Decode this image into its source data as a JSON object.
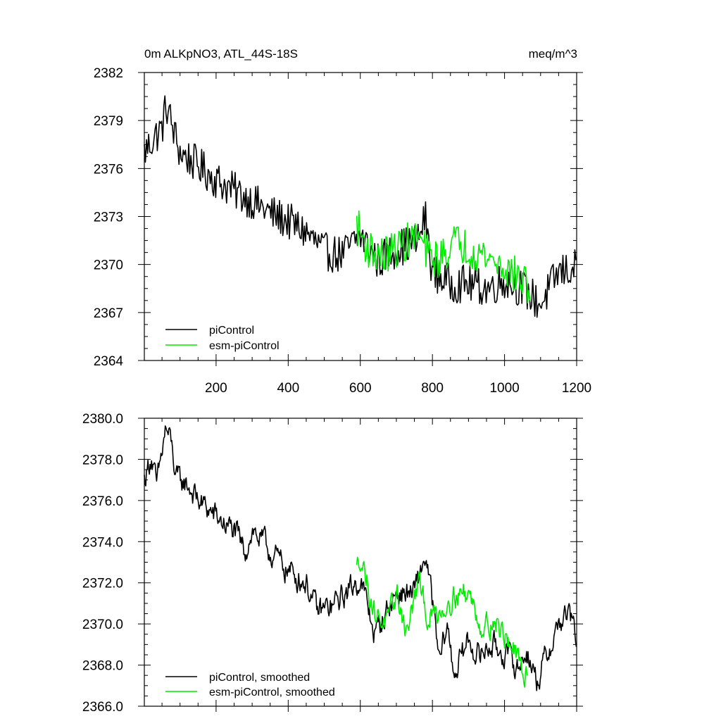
{
  "chart_data": [
    {
      "type": "line",
      "title": "0m ALKpNO3, ATL_44S-18S",
      "units": "meq/m^3",
      "xlabel": "",
      "ylabel": "",
      "xlim": [
        1,
        1200
      ],
      "ylim": [
        2364,
        2382
      ],
      "xticks": [
        200,
        400,
        600,
        800,
        1000,
        1200
      ],
      "xtick_labels": [
        "200",
        "400",
        "600",
        "800",
        "1000",
        "1200"
      ],
      "yticks": [
        2364,
        2367,
        2370,
        2373,
        2376,
        2379,
        2382
      ],
      "ytick_labels": [
        "2364",
        "2367",
        "2370",
        "2373",
        "2376",
        "2379",
        "2382"
      ],
      "legend_position": "bottom-left",
      "series": [
        {
          "name": "piControl",
          "color": "#000000",
          "knots": [
            [
              1,
              2377.0
            ],
            [
              30,
              2378.0
            ],
            [
              50,
              2378.5
            ],
            [
              62,
              2380.0
            ],
            [
              80,
              2378.5
            ],
            [
              100,
              2377.0
            ],
            [
              150,
              2376.2
            ],
            [
              200,
              2375.3
            ],
            [
              250,
              2374.6
            ],
            [
              300,
              2374.0
            ],
            [
              350,
              2373.2
            ],
            [
              400,
              2372.7
            ],
            [
              450,
              2372.0
            ],
            [
              500,
              2370.8
            ],
            [
              550,
              2370.6
            ],
            [
              600,
              2371.8
            ],
            [
              650,
              2370.2
            ],
            [
              700,
              2371.0
            ],
            [
              760,
              2371.5
            ],
            [
              780,
              2373.0
            ],
            [
              800,
              2369.5
            ],
            [
              850,
              2368.8
            ],
            [
              900,
              2368.8
            ],
            [
              950,
              2368.5
            ],
            [
              1000,
              2369.0
            ],
            [
              1050,
              2368.5
            ],
            [
              1100,
              2367.5
            ],
            [
              1150,
              2369.5
            ],
            [
              1200,
              2369.8
            ]
          ],
          "noise": 1.2
        },
        {
          "name": "esm-piControl",
          "color": "#00ee00",
          "knots": [
            [
              590,
              2372.5
            ],
            [
              620,
              2371.0
            ],
            [
              660,
              2370.5
            ],
            [
              700,
              2371.0
            ],
            [
              760,
              2371.8
            ],
            [
              790,
              2370.5
            ],
            [
              820,
              2370.3
            ],
            [
              860,
              2371.5
            ],
            [
              900,
              2371.0
            ],
            [
              950,
              2370.5
            ],
            [
              1000,
              2369.8
            ],
            [
              1050,
              2369.0
            ],
            [
              1070,
              2368.5
            ]
          ],
          "noise": 1.2
        }
      ],
      "legend": [
        "piControl",
        "esm-piControl"
      ]
    },
    {
      "type": "line",
      "title": "",
      "xlabel": "",
      "ylabel": "",
      "xlim": [
        1,
        1200
      ],
      "ylim": [
        2366.0,
        2380.0
      ],
      "xticks": [
        200,
        400,
        600,
        800,
        1000,
        1200
      ],
      "yticks": [
        2366.0,
        2368.0,
        2370.0,
        2372.0,
        2374.0,
        2376.0,
        2378.0,
        2380.0
      ],
      "ytick_labels": [
        "2366.0",
        "2368.0",
        "2370.0",
        "2372.0",
        "2374.0",
        "2376.0",
        "2378.0",
        "2380.0"
      ],
      "legend_position": "bottom-left",
      "series": [
        {
          "name": "piControl, smoothed",
          "color": "#000000",
          "knots": [
            [
              1,
              2377.0
            ],
            [
              20,
              2378.2
            ],
            [
              35,
              2376.6
            ],
            [
              60,
              2379.5
            ],
            [
              75,
              2378.8
            ],
            [
              90,
              2377.0
            ],
            [
              120,
              2376.8
            ],
            [
              150,
              2376.0
            ],
            [
              200,
              2375.2
            ],
            [
              250,
              2374.5
            ],
            [
              280,
              2373.5
            ],
            [
              300,
              2374.6
            ],
            [
              350,
              2373.5
            ],
            [
              400,
              2372.6
            ],
            [
              450,
              2372.0
            ],
            [
              480,
              2370.6
            ],
            [
              520,
              2370.8
            ],
            [
              560,
              2371.5
            ],
            [
              600,
              2372.2
            ],
            [
              640,
              2369.5
            ],
            [
              700,
              2371.5
            ],
            [
              750,
              2371.5
            ],
            [
              780,
              2373.3
            ],
            [
              800,
              2371.0
            ],
            [
              820,
              2368.0
            ],
            [
              840,
              2370.0
            ],
            [
              860,
              2367.6
            ],
            [
              900,
              2369.2
            ],
            [
              930,
              2368.4
            ],
            [
              960,
              2369.0
            ],
            [
              1000,
              2368.6
            ],
            [
              1040,
              2367.8
            ],
            [
              1060,
              2368.8
            ],
            [
              1090,
              2367.2
            ],
            [
              1120,
              2368.6
            ],
            [
              1150,
              2370.0
            ],
            [
              1180,
              2370.5
            ],
            [
              1200,
              2369.2
            ]
          ],
          "noise": 0.5
        },
        {
          "name": "esm-piControl, smoothed",
          "color": "#00ee00",
          "knots": [
            [
              590,
              2372.6
            ],
            [
              600,
              2373.4
            ],
            [
              620,
              2372.0
            ],
            [
              640,
              2370.5
            ],
            [
              680,
              2370.0
            ],
            [
              700,
              2371.5
            ],
            [
              730,
              2369.6
            ],
            [
              760,
              2372.0
            ],
            [
              790,
              2370.2
            ],
            [
              830,
              2370.8
            ],
            [
              860,
              2371.5
            ],
            [
              900,
              2371.5
            ],
            [
              940,
              2369.8
            ],
            [
              970,
              2370.2
            ],
            [
              1000,
              2369.4
            ],
            [
              1020,
              2369.0
            ],
            [
              1050,
              2367.4
            ],
            [
              1065,
              2368.0
            ]
          ],
          "noise": 0.5
        }
      ],
      "legend": [
        "piControl, smoothed",
        "esm-piControl, smoothed"
      ]
    }
  ]
}
